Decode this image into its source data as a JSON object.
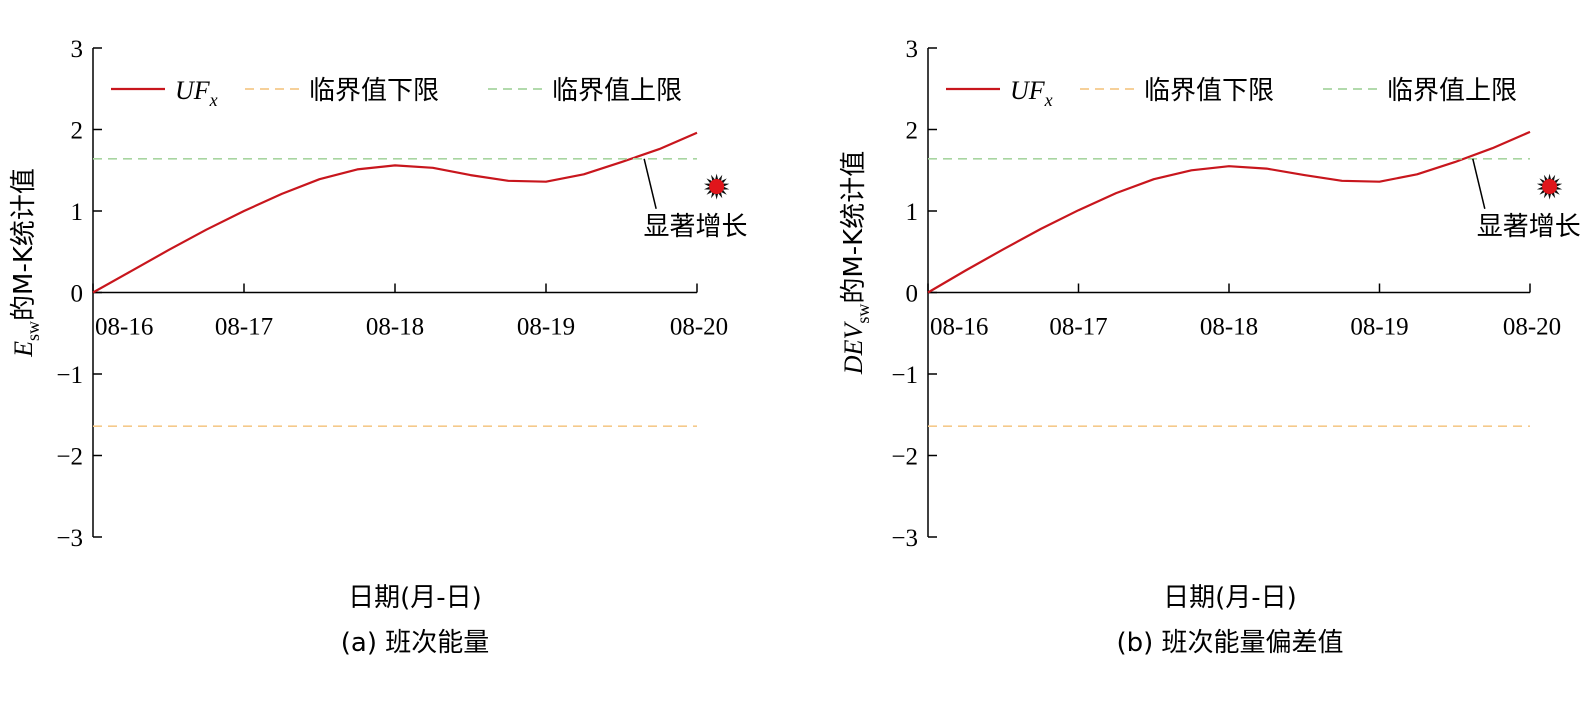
{
  "chart_data": [
    {
      "type": "line",
      "panel_label": "(a) 班次能量",
      "xlabel": "日期(月-日)",
      "ylabel": {
        "main": "E",
        "sub": "sw",
        "rest": "的M-K统计值"
      },
      "ylim": [
        -3,
        3
      ],
      "yticks": [
        3,
        2,
        1,
        0,
        -1,
        -2,
        -3
      ],
      "ytick_labels": [
        "3",
        "2",
        "1",
        "0",
        "−1",
        "−2",
        "−3"
      ],
      "xlim": [
        0,
        4
      ],
      "xticks": [
        0,
        1,
        2,
        3,
        4
      ],
      "xtick_labels": [
        "08-16",
        "08-17",
        "08-18",
        "08-19",
        "08-20"
      ],
      "legend": {
        "placement": "top",
        "entries": [
          {
            "main": "UF",
            "sub": "x",
            "color": "#c8161d",
            "style": "solid"
          },
          {
            "main": "临界值下限",
            "color": "#f5c98b",
            "style": "dashed"
          },
          {
            "main": "临界值上限",
            "color": "#a8d5a0",
            "style": "dashed"
          }
        ]
      },
      "series": [
        {
          "name": "UFx",
          "color": "#c8161d",
          "x": [
            0,
            0.25,
            0.5,
            0.75,
            1.0,
            1.25,
            1.5,
            1.75,
            2.0,
            2.25,
            2.5,
            2.75,
            3.0,
            3.25,
            3.5,
            3.75,
            4.0
          ],
          "y": [
            0,
            0.26,
            0.52,
            0.77,
            1.0,
            1.21,
            1.39,
            1.51,
            1.56,
            1.53,
            1.44,
            1.37,
            1.36,
            1.45,
            1.6,
            1.76,
            1.96
          ]
        },
        {
          "name": "临界值下限",
          "color": "#f5c98b",
          "x": [
            0,
            4
          ],
          "y": [
            -1.64,
            -1.64
          ]
        },
        {
          "name": "临界值上限",
          "color": "#a8d5a0",
          "x": [
            0,
            4
          ],
          "y": [
            1.64,
            1.64
          ]
        }
      ],
      "annotation": {
        "text": "显著增长",
        "point": [
          3.65,
          1.64
        ],
        "label_at": [
          3.5,
          1.0
        ]
      },
      "marker": {
        "color": "#e0151b",
        "x": 4.13,
        "y": 1.3
      }
    },
    {
      "type": "line",
      "panel_label": "(b) 班次能量偏差值",
      "xlabel": "日期(月-日)",
      "ylabel": {
        "main": "DEV",
        "sub": "sw",
        "rest": "的M-K统计值"
      },
      "ylim": [
        -3,
        3
      ],
      "yticks": [
        3,
        2,
        1,
        0,
        -1,
        -2,
        -3
      ],
      "ytick_labels": [
        "3",
        "2",
        "1",
        "0",
        "−1",
        "−2",
        "−3"
      ],
      "xlim": [
        0,
        4
      ],
      "xticks": [
        0,
        1,
        2,
        3,
        4
      ],
      "xtick_labels": [
        "08-16",
        "08-17",
        "08-18",
        "08-19",
        "08-20"
      ],
      "legend": {
        "placement": "top",
        "entries": [
          {
            "main": "UF",
            "sub": "x",
            "color": "#c8161d",
            "style": "solid"
          },
          {
            "main": "临界值下限",
            "color": "#f5c98b",
            "style": "dashed"
          },
          {
            "main": "临界值上限",
            "color": "#a8d5a0",
            "style": "dashed"
          }
        ]
      },
      "series": [
        {
          "name": "UFx",
          "color": "#c8161d",
          "x": [
            0,
            0.25,
            0.5,
            0.75,
            1.0,
            1.25,
            1.5,
            1.75,
            2.0,
            2.25,
            2.5,
            2.75,
            3.0,
            3.25,
            3.5,
            3.75,
            4.0
          ],
          "y": [
            0,
            0.27,
            0.53,
            0.78,
            1.01,
            1.22,
            1.39,
            1.5,
            1.55,
            1.52,
            1.44,
            1.37,
            1.36,
            1.45,
            1.6,
            1.77,
            1.97
          ]
        },
        {
          "name": "临界值下限",
          "color": "#f5c98b",
          "x": [
            0,
            4
          ],
          "y": [
            -1.64,
            -1.64
          ]
        },
        {
          "name": "临界值上限",
          "color": "#a8d5a0",
          "x": [
            0,
            4
          ],
          "y": [
            1.64,
            1.64
          ]
        }
      ],
      "annotation": {
        "text": "显著增长",
        "point": [
          3.62,
          1.64
        ],
        "label_at": [
          3.5,
          1.0
        ]
      },
      "marker": {
        "color": "#e0151b",
        "x": 4.13,
        "y": 1.3
      }
    }
  ]
}
